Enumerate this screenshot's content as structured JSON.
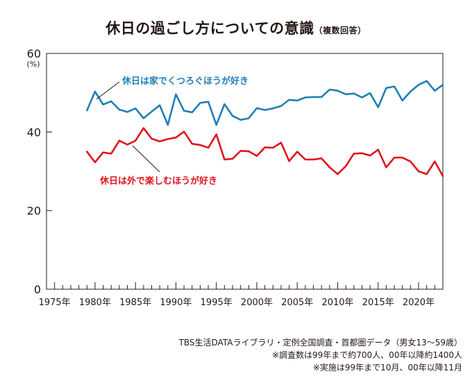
{
  "title": {
    "main": "休日の過ごし方についての意識",
    "sub": "（複数回答）"
  },
  "footnotes": [
    "TBS生活DATAライブラリ・定例全国調査・首都圏データ（男女13〜59歳）",
    "※調査数は99年まで約700人、00年以降約1400人",
    "※実施は99年まで10月、00年以降11月"
  ],
  "colors": {
    "blue": "#1f7fb5",
    "red": "#e1121b",
    "axis": "#231815"
  },
  "chart_data": {
    "type": "line",
    "ylabel": "(%)",
    "xlabel": "",
    "ylim": [
      0,
      60
    ],
    "xlim": [
      1974,
      2023
    ],
    "yticks": [
      0,
      20,
      40,
      60
    ],
    "xticks": [
      {
        "value": 1975,
        "label": "1975年"
      },
      {
        "value": 1980,
        "label": "1980年"
      },
      {
        "value": 1985,
        "label": "1985年"
      },
      {
        "value": 1990,
        "label": "1990年"
      },
      {
        "value": 1995,
        "label": "1995年"
      },
      {
        "value": 2000,
        "label": "2000年"
      },
      {
        "value": 2005,
        "label": "2005年"
      },
      {
        "value": 2010,
        "label": "2010年"
      },
      {
        "value": 2015,
        "label": "2015年"
      },
      {
        "value": 2020,
        "label": "2020年"
      }
    ],
    "grid": "none",
    "x": [
      1979,
      1980,
      1981,
      1982,
      1983,
      1984,
      1985,
      1986,
      1987,
      1988,
      1989,
      1990,
      1991,
      1992,
      1993,
      1994,
      1995,
      1996,
      1997,
      1998,
      1999,
      2000,
      2001,
      2002,
      2003,
      2004,
      2005,
      2006,
      2007,
      2008,
      2009,
      2010,
      2011,
      2012,
      2013,
      2014,
      2015,
      2016,
      2017,
      2018,
      2019,
      2020,
      2021,
      2022,
      2023
    ],
    "series": [
      {
        "name": "休日は家でくつろぐほうが好き",
        "color": "#1f7fb5",
        "values": [
          45.5,
          50.3,
          47.0,
          47.8,
          45.7,
          45.1,
          46.0,
          43.5,
          45.2,
          46.8,
          41.8,
          49.6,
          45.4,
          45.0,
          47.4,
          47.7,
          41.8,
          47.1,
          44.1,
          43.1,
          43.5,
          46.1,
          45.6,
          46.0,
          46.6,
          48.2,
          48.0,
          48.8,
          48.9,
          48.9,
          50.8,
          50.5,
          49.6,
          49.8,
          48.8,
          49.9,
          46.3,
          51.2,
          51.6,
          48.0,
          50.3,
          52.0,
          53.0,
          50.5,
          52.0
        ]
      },
      {
        "name": "休日は外で楽しむほうが好き",
        "color": "#e1121b",
        "values": [
          35.0,
          32.3,
          34.8,
          34.5,
          37.8,
          36.8,
          37.8,
          41.0,
          38.3,
          37.6,
          38.2,
          38.6,
          40.1,
          37.0,
          36.7,
          36.0,
          39.4,
          33.0,
          33.2,
          35.2,
          35.1,
          33.9,
          36.1,
          36.0,
          37.3,
          32.6,
          35.0,
          33.0,
          33.0,
          33.3,
          31.0,
          29.3,
          31.3,
          34.5,
          34.6,
          34.0,
          35.5,
          31.0,
          33.5,
          33.5,
          32.5,
          30.0,
          29.3,
          32.5,
          28.8
        ]
      }
    ]
  }
}
